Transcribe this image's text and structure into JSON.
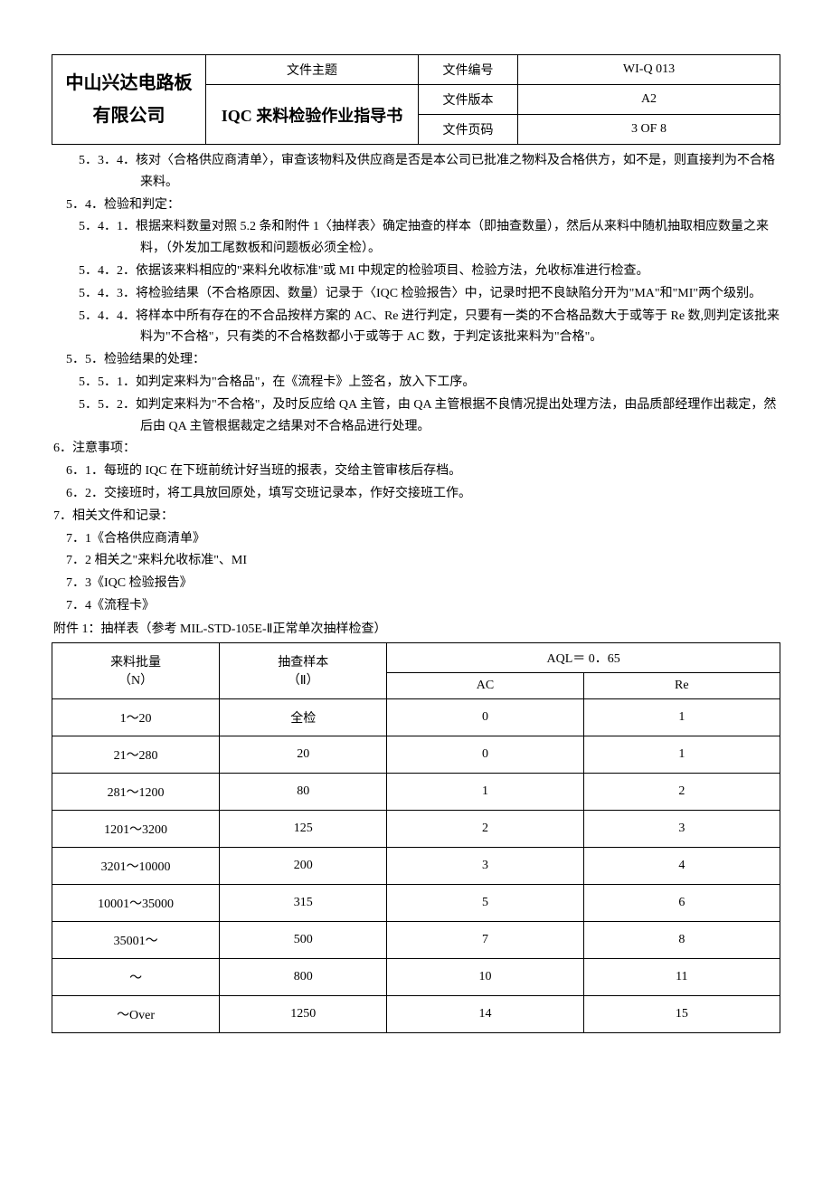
{
  "header": {
    "company": "中山兴达电路板有限公司",
    "subject_label": "文件主题",
    "doc_title": "IQC 来料检验作业指导书",
    "doc_no_label": "文件编号",
    "doc_no": "WI-Q 013",
    "version_label": "文件版本",
    "version": "A2",
    "page_label": "文件页码",
    "page": "3 OF 8"
  },
  "body": {
    "p534": "5．3．4．核对〈合格供应商清单〉，审查该物料及供应商是否是本公司已批准之物料及合格供方，如不是，则直接判为不合格来料。",
    "p54": "5．4．检验和判定：",
    "p541": "5．4．1．根据来料数量对照 5.2 条和附件 1〈抽样表〉确定抽查的样本（即抽查数量），然后从来料中随机抽取相应数量之来料，（外发加工尾数板和问题板必须全检）。",
    "p542": "5．4．2．依据该来料相应的\"来料允收标准\"或 MI 中规定的检验项目、检验方法，允收标准进行检查。",
    "p543": "5．4．3．将检验结果（不合格原因、数量）记录于〈IQC 检验报告〉中，记录时把不良缺陷分开为\"MA\"和\"MI\"两个级别。",
    "p544": "5．4．4．将样本中所有存在的不合品按样方案的 AC、Re 进行判定，只要有一类的不合格品数大于或等于 Re 数,则判定该批来料为\"不合格\"，只有类的不合格数都小于或等于 AC 数，于判定该批来料为\"合格\"。",
    "p55": "5．5．检验结果的处理：",
    "p551": "5．5．1．如判定来料为\"合格品\"，在《流程卡》上签名，放入下工序。",
    "p552": "5．5．2．如判定来料为\"不合格\"，及时反应给 QA 主管，由 QA 主管根据不良情况提出处理方法，由品质部经理作出裁定，然后由 QA 主管根据裁定之结果对不合格品进行处理。",
    "p6": "6．注意事项：",
    "p61": "6．1．每班的 IQC 在下班前统计好当班的报表，交给主管审核后存档。",
    "p62": "6．2．交接班时，将工具放回原处，填写交班记录本，作好交接班工作。",
    "p7": "7．相关文件和记录：",
    "p71": "7．1《合格供应商清单》",
    "p72": "7．2 相关之\"来料允收标准\"、MI",
    "p73": "7．3《IQC 检验报告》",
    "p74": "7．4《流程卡》",
    "appendix": "附件 1：抽样表（参考 MIL-STD-105E-Ⅱ正常单次抽样检查）"
  },
  "table": {
    "col1_h1": "来料批量",
    "col1_h2": "（N）",
    "col2_h1": "抽查样本",
    "col2_h2": "（Ⅱ）",
    "aql_header": "AQL＝ 0．65",
    "ac_header": "AC",
    "re_header": "Re",
    "rows": [
      {
        "batch": "1～20",
        "sample": "全检",
        "ac": "0",
        "re": "1"
      },
      {
        "batch": "21～280",
        "sample": "20",
        "ac": "0",
        "re": "1"
      },
      {
        "batch": "281～1200",
        "sample": "80",
        "ac": "1",
        "re": "2"
      },
      {
        "batch": "1201～3200",
        "sample": "125",
        "ac": "2",
        "re": "3"
      },
      {
        "batch": "3201～10000",
        "sample": "200",
        "ac": "3",
        "re": "4"
      },
      {
        "batch": "10001～35000",
        "sample": "315",
        "ac": "5",
        "re": "6"
      },
      {
        "batch": "35001～",
        "sample": "500",
        "ac": "7",
        "re": "8"
      },
      {
        "batch": "～",
        "sample": "800",
        "ac": "10",
        "re": "11"
      },
      {
        "batch": "～Over",
        "sample": "1250",
        "ac": "14",
        "re": "15"
      }
    ]
  }
}
